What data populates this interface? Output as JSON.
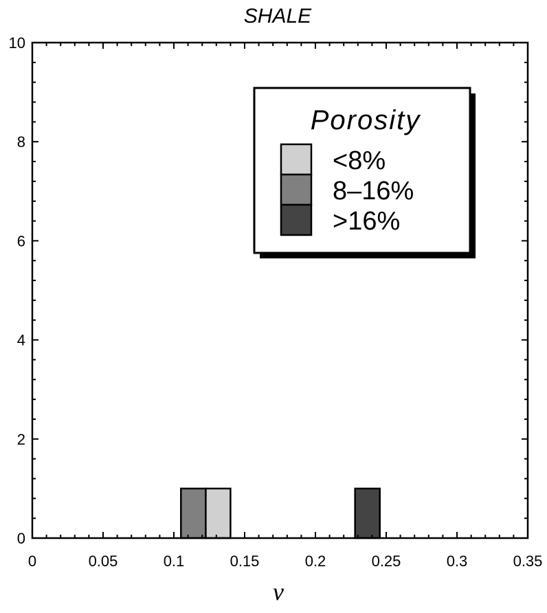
{
  "chart_data": {
    "type": "bar",
    "title": "SHALE",
    "xlabel": "ν",
    "ylabel": "",
    "xlim": [
      0,
      0.35
    ],
    "ylim": [
      0,
      10
    ],
    "grid": false,
    "legend_position": "top-right",
    "xticks": [
      "0",
      "0.05",
      "0.1",
      "0.15",
      "0.2",
      "0.25",
      "0.3",
      "0.35"
    ],
    "yticks": [
      "0",
      "2",
      "4",
      "6",
      "8",
      "10"
    ],
    "legend": {
      "title": "Porosity"
    },
    "series": [
      {
        "name": "<8%",
        "color": "#d0d0d0",
        "bins": [
          {
            "x0": 0.1225,
            "x1": 0.14,
            "count": 1
          }
        ]
      },
      {
        "name": "8–16%",
        "color": "#808080",
        "bins": [
          {
            "x0": 0.105,
            "x1": 0.1225,
            "count": 1
          }
        ]
      },
      {
        "name": ">16%",
        "color": "#444444",
        "bins": [
          {
            "x0": 0.228,
            "x1": 0.2455,
            "count": 1
          }
        ]
      }
    ]
  }
}
